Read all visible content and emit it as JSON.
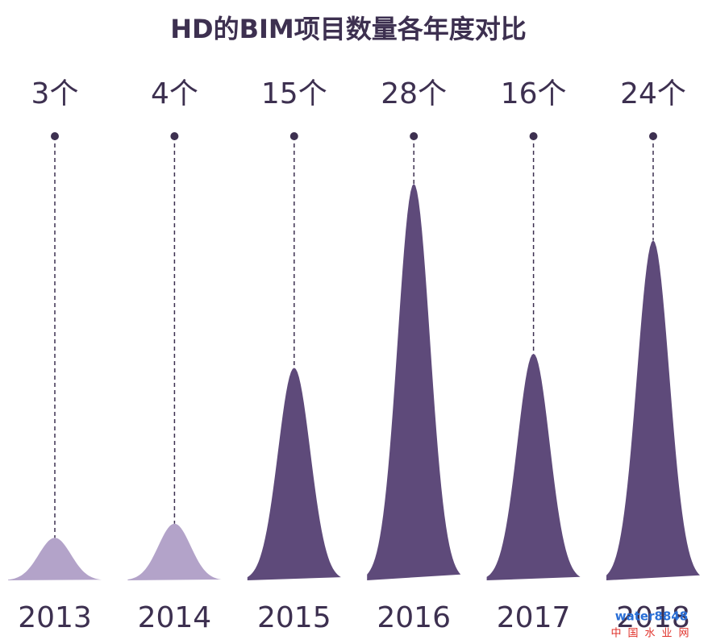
{
  "chart_data": {
    "type": "peak",
    "title": "HD的BIM项目数量各年度对比",
    "categories": [
      "2013",
      "2014",
      "2015",
      "2016",
      "2017",
      "2018"
    ],
    "values": [
      3,
      4,
      15,
      28,
      16,
      24
    ],
    "value_labels": [
      "3个",
      "4个",
      "15个",
      "28个",
      "16个",
      "24个"
    ],
    "colors": [
      "#b3a3c9",
      "#b3a3c9",
      "#5e4a7a",
      "#5e4a7a",
      "#5e4a7a",
      "#5e4a7a"
    ]
  },
  "watermark": {
    "brand": "water8848",
    "site": "中国水业网"
  }
}
